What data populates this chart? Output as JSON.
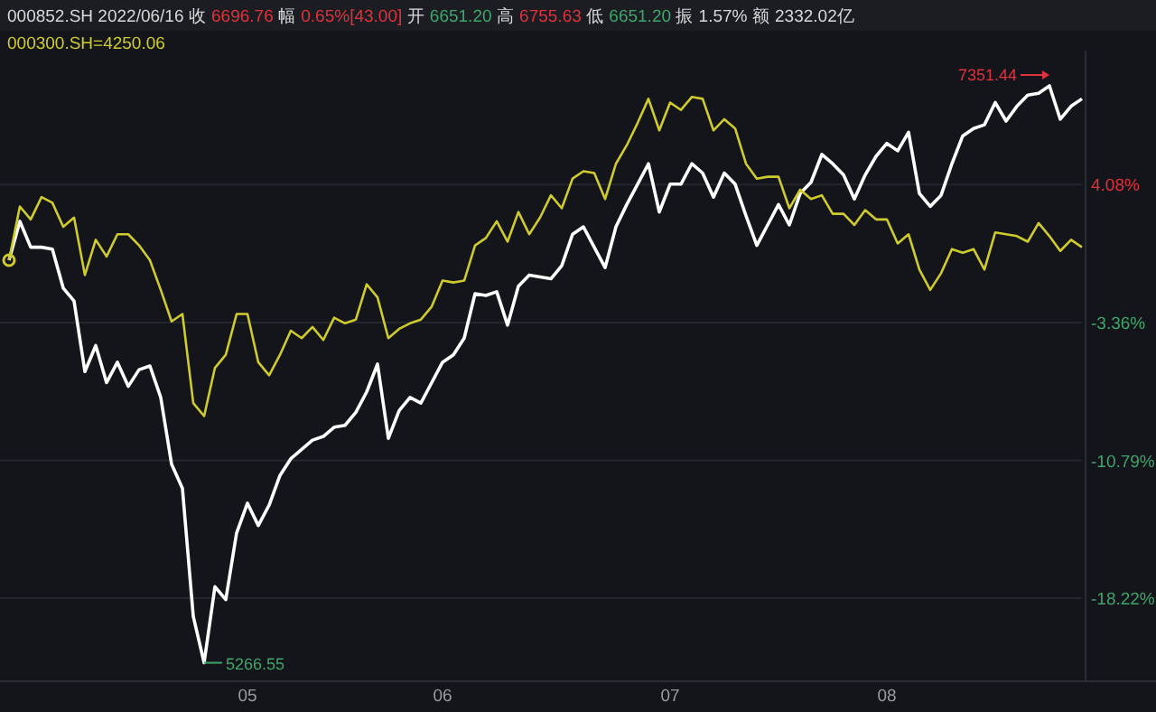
{
  "chart_data": {
    "type": "line",
    "title": "000852.SH 2022/06/16 收 6696.76 幅 0.65%[43.00] 开 6651.20 高 6755.63 低 6651.20 振 1.57% 额 2332.02亿",
    "categories": [
      null,
      null,
      null,
      null,
      null,
      null,
      null,
      null,
      null,
      null,
      null,
      null,
      null,
      null,
      null,
      null,
      null,
      null,
      null,
      null,
      null,
      null,
      "05",
      null,
      null,
      null,
      null,
      null,
      null,
      null,
      null,
      null,
      null,
      null,
      null,
      null,
      null,
      null,
      null,
      null,
      "06",
      null,
      null,
      null,
      null,
      null,
      null,
      null,
      null,
      null,
      null,
      null,
      null,
      null,
      null,
      null,
      null,
      null,
      null,
      null,
      null,
      "07",
      null,
      null,
      null,
      null,
      null,
      null,
      null,
      null,
      null,
      null,
      null,
      null,
      null,
      null,
      null,
      null,
      null,
      null,
      null,
      "08",
      null,
      null,
      null,
      null,
      null,
      null,
      null,
      null,
      null,
      null,
      null,
      null,
      null,
      null,
      null,
      null,
      null,
      null
    ],
    "series": [
      {
        "color": "#ffffff",
        "values": [
          0,
          2.1,
          0.7,
          0.7,
          0.6,
          -1.5,
          -2.2,
          -6.0,
          -4.6,
          -6.6,
          -5.5,
          -6.8,
          -5.9,
          -5.7,
          -7.4,
          -11.0,
          -12.3,
          -19.2,
          -21.7,
          -17.6,
          -18.3,
          -14.7,
          -13.1,
          -14.3,
          -13.2,
          -11.6,
          -10.7,
          -10.2,
          -9.7,
          -9.5,
          -9.0,
          -8.9,
          -8.2,
          -7.1,
          -5.6,
          -9.6,
          -8.1,
          -7.4,
          -7.7,
          -6.6,
          -5.5,
          -5.1,
          -4.2,
          -1.8,
          -1.9,
          -1.7,
          -3.5,
          -1.4,
          -0.8,
          -0.9,
          -1.0,
          -0.3,
          1.4,
          1.8,
          0.7,
          -0.4,
          1.8,
          3.0,
          4.1,
          5.2,
          2.6,
          4.1,
          4.1,
          5.2,
          4.7,
          3.4,
          4.7,
          4.1,
          2.4,
          0.8,
          1.9,
          3.0,
          1.9,
          3.6,
          4.2,
          5.7,
          5.2,
          4.6,
          3.3,
          4.6,
          5.6,
          6.3,
          5.9,
          6.9,
          3.6,
          2.9,
          3.5,
          5.2,
          6.7,
          7.1,
          7.3,
          8.5,
          7.5,
          8.3,
          8.9,
          9.0,
          9.4,
          7.6,
          8.3,
          8.7
        ]
      },
      {
        "name": "000300.SH=4250.06",
        "color": "#cfcb2e",
        "values": [
          0,
          2.9,
          2.2,
          3.4,
          3.1,
          1.8,
          2.3,
          -0.8,
          1.1,
          0.2,
          1.4,
          1.4,
          0.8,
          0.0,
          -1.6,
          -3.3,
          -2.9,
          -7.7,
          -8.4,
          -5.8,
          -5.1,
          -2.9,
          -2.9,
          -5.5,
          -6.2,
          -5.1,
          -3.8,
          -4.2,
          -3.6,
          -4.3,
          -3.1,
          -3.4,
          -3.2,
          -1.3,
          -2.0,
          -4.2,
          -3.7,
          -3.4,
          -3.2,
          -2.5,
          -1.1,
          -1.2,
          -1.1,
          0.8,
          1.2,
          2.1,
          1.0,
          2.6,
          1.4,
          2.3,
          3.5,
          2.8,
          4.4,
          4.8,
          4.7,
          3.3,
          5.2,
          6.2,
          7.4,
          8.7,
          7.0,
          8.5,
          8.1,
          8.8,
          8.7,
          7.0,
          7.6,
          7.1,
          5.2,
          4.4,
          4.5,
          4.5,
          2.8,
          3.8,
          3.3,
          3.5,
          2.5,
          2.5,
          1.9,
          2.7,
          2.2,
          2.2,
          0.9,
          1.4,
          -0.5,
          -1.6,
          -0.7,
          0.6,
          0.4,
          0.6,
          -0.5,
          1.5,
          1.4,
          1.3,
          1.0,
          2.0,
          1.3,
          0.5,
          1.1,
          0.7
        ]
      }
    ],
    "ylim": [
      -22.6,
      11.3
    ],
    "yticks": [
      {
        "value": 4.08,
        "label": "4.08%"
      },
      {
        "value": -3.36,
        "label": "-3.36%"
      },
      {
        "value": -10.79,
        "label": "-10.79%"
      },
      {
        "value": -18.22,
        "label": "-18.22%"
      }
    ],
    "annotations": [
      "5266.55",
      "7351.44"
    ],
    "grid": "y",
    "legend": "top left",
    "marker": "none",
    "line_style": "solid"
  }
}
